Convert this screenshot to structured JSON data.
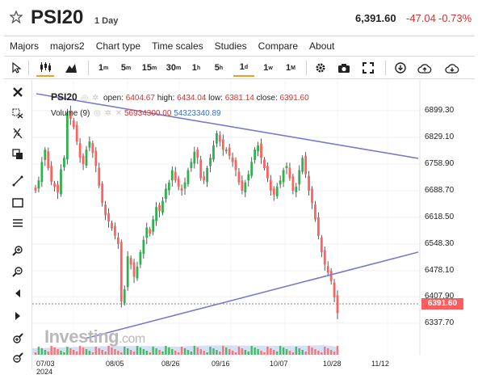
{
  "header": {
    "symbol": "PSI20",
    "period": "1 Day",
    "price": "6,391.60",
    "change": "-47.04",
    "change_pct": "-0.73%"
  },
  "menu": [
    "Majors",
    "majors2",
    "Chart type",
    "Time scales",
    "Studies",
    "Compare",
    "About"
  ],
  "toolbar": {
    "tf_1m": "1",
    "tf_1m_sup": "m",
    "tf_5m": "5",
    "tf_5m_sup": "m",
    "tf_15m": "15",
    "tf_15m_sup": "m",
    "tf_30m": "30",
    "tf_30m_sup": "m",
    "tf_1h": "1",
    "tf_1h_sup": "h",
    "tf_5h": "5",
    "tf_5h_sup": "h",
    "tf_1d": "1",
    "tf_1d_sup": "d",
    "tf_1w": "1",
    "tf_1w_sup": "w",
    "tf_1M": "1",
    "tf_1M_sup": "M"
  },
  "legend": {
    "title": "PSI20",
    "open_label": "open:",
    "open": "6404.67",
    "high_label": "high:",
    "high": "6434.04",
    "low_label": "low:",
    "low": "6381.14",
    "close_label": "close:",
    "close": "6391.60",
    "volume_label": "Volume (9)",
    "volume_1": "56934300.00",
    "volume_2": "54323340.89"
  },
  "watermark": {
    "brand": "Investing",
    "domain": ".com"
  },
  "y_axis": [
    "6899.30",
    "6829.10",
    "6758.90",
    "6688.70",
    "6618.50",
    "6548.30",
    "6478.10",
    "6407.90",
    "6337.70"
  ],
  "price_tag": "6391.60",
  "x_axis": [
    {
      "label": "07/03",
      "year": "2024"
    },
    {
      "label": "08/05"
    },
    {
      "label": "08/26"
    },
    {
      "label": "09/16"
    },
    {
      "label": "10/07"
    },
    {
      "label": "10/28"
    },
    {
      "label": "11/12"
    }
  ],
  "colors": {
    "up": "#30b050",
    "down": "#ff6060",
    "trendline": "#7a7ac8",
    "price_tag": "#ff5d5d",
    "volume_fill": "#b8ccec"
  },
  "chart_data": {
    "type": "candlestick",
    "ylim": [
      6290,
      6940
    ],
    "close_series": [
      6690,
      6715,
      6760,
      6790,
      6745,
      6712,
      6700,
      6685,
      6742,
      6770,
      6880,
      6865,
      6845,
      6810,
      6770,
      6755,
      6790,
      6810,
      6782,
      6750,
      6702,
      6660,
      6630,
      6615,
      6598,
      6580,
      6560,
      6420,
      6450,
      6530,
      6510,
      6480,
      6505,
      6540,
      6570,
      6600,
      6585,
      6620,
      6650,
      6640,
      6665,
      6695,
      6710,
      6740,
      6715,
      6700,
      6690,
      6710,
      6740,
      6760,
      6785,
      6770,
      6720,
      6715,
      6745,
      6770,
      6800,
      6830,
      6810,
      6790,
      6790,
      6775,
      6760,
      6740,
      6710,
      6690,
      6710,
      6730,
      6760,
      6790,
      6800,
      6770,
      6745,
      6720,
      6690,
      6680,
      6700,
      6715,
      6740,
      6750,
      6720,
      6690,
      6700,
      6740,
      6770,
      6730,
      6690,
      6660,
      6620,
      6580,
      6540,
      6510,
      6490,
      6470,
      6430,
      6391.6
    ]
  }
}
